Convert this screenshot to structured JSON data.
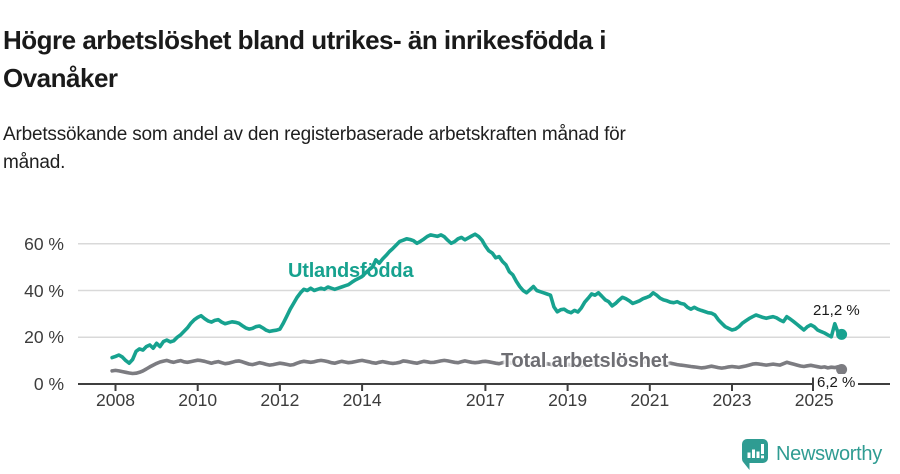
{
  "header": {
    "title_line1": "Högre arbetslöshet bland utrikes- än inrikesfödda i",
    "title_line2": "Ovanåker",
    "subtitle_line1": "Arbetssökande som andel av den registerbaserade arbetskraften månad för",
    "subtitle_line2": "månad."
  },
  "annotations": {
    "utlandsfodda_label": "Utlandsfödda",
    "total_label": "Total arbetslöshet",
    "teal_end_value": "21,2 %",
    "gray_end_value": "6,2 %"
  },
  "footer": {
    "brand": "Newsworthy",
    "logo_icon": "newsworthy-speech-bubble-bar-chart-icon"
  },
  "colors": {
    "teal": "#17a28f",
    "gray_line": "#7c7c81",
    "gray_label": "#6e6e73",
    "grid": "#d9d9d9",
    "axis": "#3f3f3f",
    "text_dark": "#1a1a1a",
    "brand_teal": "#2f9c92"
  },
  "chart_data": {
    "type": "line",
    "title": "Högre arbetslöshet bland utrikes- än inrikesfödda i Ovanåker",
    "subtitle": "Arbetssökande som andel av den registerbaserade arbetskraften månad för månad.",
    "x_start": "2007-12",
    "x_end": "2025-09",
    "x_step": "month",
    "x_tick_years": [
      2008,
      2010,
      2012,
      2014,
      2017,
      2019,
      2021,
      2023,
      2025
    ],
    "x_tick_labels": [
      "2008",
      "2010",
      "2012",
      "2014",
      "2017",
      "2019",
      "2021",
      "2023",
      "2025"
    ],
    "y_ticks": [
      0,
      20,
      40,
      60
    ],
    "y_tick_labels": [
      "0 %",
      "20 %",
      "40 %",
      "60 %"
    ],
    "ylim": [
      0,
      68
    ],
    "grid": "horizontal",
    "series": [
      {
        "name": "Total arbetslöshet",
        "color": "#7c7c81",
        "end_value": 6.2,
        "end_label": "6,2 %",
        "values": [
          5.6,
          5.8,
          5.6,
          5.3,
          5.0,
          4.7,
          4.5,
          4.6,
          5.0,
          5.6,
          6.4,
          7.3,
          8.1,
          8.8,
          9.4,
          9.8,
          10.1,
          9.6,
          9.3,
          9.7,
          10.0,
          9.5,
          9.3,
          9.6,
          9.9,
          10.2,
          10.0,
          9.7,
          9.3,
          8.9,
          9.3,
          9.6,
          9.1,
          8.7,
          8.9,
          9.3,
          9.7,
          9.9,
          9.5,
          9.0,
          8.5,
          8.3,
          8.7,
          9.1,
          8.8,
          8.4,
          8.1,
          8.3,
          8.6,
          8.9,
          8.7,
          8.4,
          8.1,
          8.3,
          8.9,
          9.4,
          9.7,
          9.5,
          9.3,
          9.5,
          9.9,
          10.1,
          9.9,
          9.6,
          9.1,
          8.9,
          9.3,
          9.7,
          9.4,
          9.1,
          9.3,
          9.6,
          9.9,
          10.1,
          9.8,
          9.5,
          9.1,
          8.9,
          9.3,
          9.6,
          9.3,
          9.0,
          8.8,
          9.0,
          9.3,
          9.9,
          9.7,
          9.4,
          9.1,
          8.9,
          9.3,
          9.7,
          9.5,
          9.2,
          9.3,
          9.6,
          9.9,
          10.1,
          9.9,
          9.6,
          9.3,
          9.1,
          9.5,
          9.9,
          9.6,
          9.3,
          9.1,
          9.3,
          9.6,
          9.7,
          9.5,
          9.2,
          8.9,
          8.7,
          9.1,
          9.5,
          9.2,
          8.9,
          8.7,
          8.9,
          9.1,
          9.1,
          8.9,
          8.6,
          8.3,
          8.1,
          8.4,
          8.7,
          8.4,
          8.1,
          7.9,
          8.1,
          8.3,
          8.4,
          8.2,
          8.0,
          7.8,
          7.9,
          8.3,
          8.6,
          8.4,
          8.1,
          8.3,
          8.5,
          8.7,
          8.9,
          8.7,
          9.1,
          9.7,
          10.1,
          10.3,
          10.5,
          10.1,
          9.8,
          9.5,
          9.3,
          9.5,
          9.3,
          9.1,
          8.9,
          8.6,
          8.4,
          8.6,
          8.9,
          8.6,
          8.3,
          8.1,
          7.9,
          7.7,
          7.5,
          7.3,
          7.1,
          6.9,
          7.0,
          7.3,
          7.6,
          7.3,
          7.0,
          6.8,
          7.0,
          7.3,
          7.5,
          7.3,
          7.1,
          7.4,
          7.7,
          8.1,
          8.5,
          8.7,
          8.5,
          8.3,
          8.1,
          8.3,
          8.5,
          8.3,
          8.1,
          8.7,
          9.3,
          8.9,
          8.5,
          8.1,
          7.7,
          7.5,
          7.8,
          8.0,
          7.7,
          7.4,
          7.1,
          7.3,
          6.9,
          7.2,
          7.0,
          7.4,
          6.2
        ]
      },
      {
        "name": "Utlandsfödda",
        "color": "#17a28f",
        "end_value": 21.2,
        "end_label": "21,2 %",
        "values": [
          11.3,
          11.8,
          12.4,
          11.5,
          10.0,
          8.9,
          10.5,
          14.0,
          15.0,
          14.5,
          16.0,
          16.7,
          15.3,
          17.4,
          16.0,
          18.2,
          18.8,
          18.0,
          18.5,
          20.0,
          21.0,
          22.5,
          24.0,
          26.0,
          27.5,
          28.5,
          29.2,
          28.0,
          27.0,
          26.5,
          27.2,
          27.5,
          26.5,
          25.8,
          26.2,
          26.6,
          26.4,
          26.0,
          25.0,
          24.0,
          23.5,
          23.8,
          24.5,
          24.8,
          24.0,
          23.0,
          22.5,
          22.8,
          23.0,
          23.5,
          26.0,
          29.0,
          32.0,
          34.5,
          37.0,
          39.0,
          40.5,
          40.0,
          41.0,
          40.0,
          40.5,
          41.0,
          40.5,
          41.5,
          41.0,
          40.5,
          41.0,
          41.5,
          42.0,
          42.5,
          43.5,
          44.5,
          45.2,
          46.0,
          47.5,
          48.8,
          50.0,
          53.1,
          51.7,
          53.5,
          55.0,
          56.7,
          58.0,
          59.5,
          61.0,
          61.5,
          62.1,
          61.8,
          61.3,
          60.2,
          61.0,
          62.0,
          63.1,
          63.8,
          63.5,
          63.2,
          63.8,
          63.0,
          61.5,
          60.2,
          60.9,
          62.1,
          62.7,
          61.7,
          62.5,
          63.3,
          64.1,
          63.1,
          61.5,
          59.0,
          57.0,
          56.0,
          54.0,
          54.5,
          52.4,
          51.0,
          48.0,
          46.7,
          44.0,
          41.7,
          40.0,
          39.0,
          40.3,
          41.7,
          40.0,
          39.5,
          39.0,
          38.5,
          38.0,
          33.0,
          30.9,
          31.8,
          32.0,
          31.0,
          30.5,
          31.5,
          30.8,
          32.5,
          35.0,
          36.7,
          38.5,
          38.0,
          39.0,
          37.5,
          36.0,
          35.2,
          33.4,
          34.5,
          35.9,
          37.1,
          36.5,
          35.6,
          34.5,
          35.0,
          35.6,
          36.5,
          37.0,
          37.6,
          39.0,
          38.0,
          36.7,
          36.0,
          35.6,
          35.0,
          34.8,
          35.2,
          34.5,
          34.2,
          32.8,
          32.0,
          32.8,
          32.0,
          31.5,
          31.0,
          30.5,
          30.3,
          29.5,
          27.5,
          26.0,
          24.5,
          23.8,
          23.1,
          23.5,
          24.5,
          26.0,
          27.0,
          28.0,
          28.8,
          29.5,
          29.0,
          28.5,
          28.1,
          28.5,
          28.8,
          28.3,
          27.4,
          26.7,
          28.8,
          27.8,
          26.7,
          25.5,
          24.3,
          23.1,
          24.5,
          25.3,
          24.5,
          23.1,
          22.4,
          21.8,
          21.0,
          20.2,
          25.8,
          21.8,
          21.2
        ]
      }
    ]
  }
}
